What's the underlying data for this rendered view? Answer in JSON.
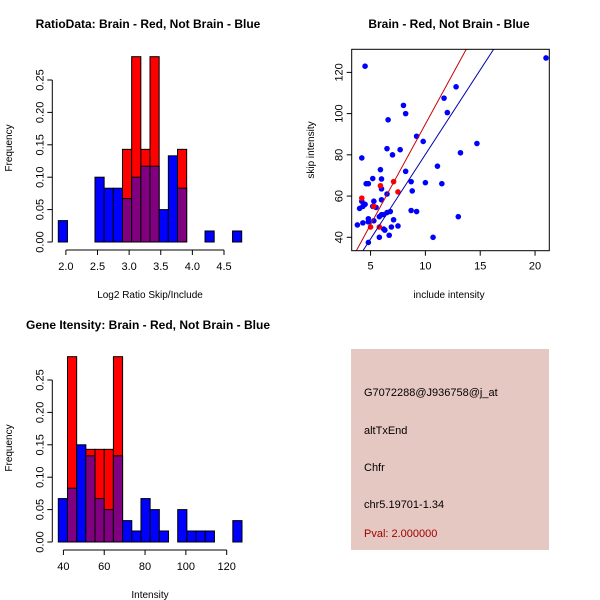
{
  "colors": {
    "red": "#ff0000",
    "blue": "#0000ff",
    "overlap": "#800080",
    "info_bg": "#e6c8c2",
    "pval": "#990000"
  },
  "chart_data": [
    {
      "type": "bar",
      "subtype": "overlaid-histogram",
      "title": "RatioData: Brain - Red, Not Brain - Blue",
      "xlabel": "Log2 Ratio Skip/Include",
      "ylabel": "Frequency",
      "xlim": [
        1.88,
        4.78
      ],
      "ylim": [
        0,
        0.286
      ],
      "xticks": [
        "2.0",
        "2.5",
        "3.0",
        "3.5",
        "4.0",
        "4.5"
      ],
      "yticks": [
        "0.00",
        "0.05",
        "0.10",
        "0.15",
        "0.20",
        "0.25"
      ],
      "bin_start": 1.88,
      "bin_width": 0.145,
      "series": [
        {
          "name": "Brain",
          "color": "red",
          "values": [
            0,
            0,
            0,
            0,
            0,
            0,
            0,
            0.143,
            0.286,
            0.143,
            0.286,
            0,
            0,
            0.143,
            0,
            0,
            0,
            0,
            0,
            0
          ]
        },
        {
          "name": "Not Brain",
          "color": "blue",
          "values": [
            0.033,
            0,
            0,
            0,
            0.1,
            0.083,
            0.083,
            0.067,
            0.1,
            0.117,
            0.117,
            0.05,
            0.133,
            0.083,
            0,
            0,
            0.017,
            0,
            0,
            0.017
          ]
        }
      ]
    },
    {
      "type": "scatter",
      "title": "Brain - Red, Not Brain - Blue",
      "xlabel": "include intensity",
      "ylabel": "skip intensity",
      "xlim": [
        3.28,
        21.3
      ],
      "ylim": [
        33.5,
        131.2
      ],
      "xticks": [
        "5",
        "10",
        "15",
        "20"
      ],
      "yticks": [
        "40",
        "60",
        "80",
        "100",
        "120"
      ],
      "series": [
        {
          "name": "Not Brain",
          "color": "blue",
          "points": [
            [
              4.5,
              123
            ],
            [
              21,
              127
            ],
            [
              12.8,
              113
            ],
            [
              11.7,
              107.5
            ],
            [
              12,
              100.5
            ],
            [
              8,
              104
            ],
            [
              8.2,
              100
            ],
            [
              6.6,
              97
            ],
            [
              9.2,
              89
            ],
            [
              9.8,
              86.5
            ],
            [
              14.7,
              85.5
            ],
            [
              6.5,
              83
            ],
            [
              7.7,
              82.5
            ],
            [
              7,
              80
            ],
            [
              13.2,
              81
            ],
            [
              4.2,
              78.5
            ],
            [
              11.1,
              74.5
            ],
            [
              5.9,
              72.8
            ],
            [
              8.2,
              72
            ],
            [
              5.2,
              68.5
            ],
            [
              6,
              68.3
            ],
            [
              4.6,
              66
            ],
            [
              4.8,
              66
            ],
            [
              8.7,
              67
            ],
            [
              10,
              66.5
            ],
            [
              11.5,
              66
            ],
            [
              6,
              63.5
            ],
            [
              8.8,
              62.5
            ],
            [
              6.5,
              61
            ],
            [
              6,
              58.2
            ],
            [
              4.2,
              57.5
            ],
            [
              5.3,
              57.5
            ],
            [
              4.5,
              56
            ],
            [
              4,
              54
            ],
            [
              4.3,
              55
            ],
            [
              5.2,
              55
            ],
            [
              5.5,
              54.5
            ],
            [
              8.7,
              53
            ],
            [
              9.2,
              52.5
            ],
            [
              6.8,
              52.5
            ],
            [
              6.5,
              52
            ],
            [
              6.2,
              51
            ],
            [
              6,
              51
            ],
            [
              5.8,
              50
            ],
            [
              13,
              50
            ],
            [
              4.8,
              49
            ],
            [
              5.3,
              48
            ],
            [
              4.8,
              47.5
            ],
            [
              4.3,
              47
            ],
            [
              3.8,
              46
            ],
            [
              7.1,
              48.5
            ],
            [
              6.2,
              44
            ],
            [
              6.3,
              43.5
            ],
            [
              6.9,
              45
            ],
            [
              7.5,
              45.5
            ],
            [
              5.8,
              40
            ],
            [
              6.7,
              41
            ],
            [
              10.7,
              40
            ],
            [
              4.8,
              37.5
            ]
          ]
        },
        {
          "name": "Brain",
          "color": "red",
          "points": [
            [
              4.2,
              59
            ],
            [
              5.9,
              65
            ],
            [
              7.1,
              67
            ],
            [
              7.5,
              62
            ],
            [
              5,
              45
            ],
            [
              5.8,
              45
            ],
            [
              5.3,
              55
            ]
          ]
        }
      ],
      "fit_lines": [
        {
          "name": "Brain fit",
          "color": "red",
          "slope": 9.75,
          "intercept": -2.6
        },
        {
          "name": "Not Brain fit",
          "color": "blue",
          "slope": 8.2,
          "intercept": -1.8
        }
      ]
    },
    {
      "type": "bar",
      "subtype": "overlaid-histogram",
      "title": "Gene Itensity: Brain - Red, Not Brain - Blue",
      "xlabel": "Intensity",
      "ylabel": "Frequency",
      "xlim": [
        37.5,
        127.5
      ],
      "ylim": [
        0,
        0.286
      ],
      "xticks": [
        "40",
        "60",
        "80",
        "100",
        "120"
      ],
      "yticks": [
        "0.00",
        "0.05",
        "0.10",
        "0.15",
        "0.20",
        "0.25"
      ],
      "bin_start": 37.5,
      "bin_width": 4.5,
      "series": [
        {
          "name": "Brain",
          "color": "red",
          "values": [
            0,
            0.286,
            0,
            0.143,
            0.143,
            0.143,
            0.286,
            0,
            0,
            0,
            0,
            0,
            0,
            0,
            0,
            0,
            0,
            0,
            0,
            0
          ]
        },
        {
          "name": "Not Brain",
          "color": "blue",
          "values": [
            0.067,
            0.083,
            0.15,
            0.133,
            0.067,
            0.05,
            0.133,
            0.033,
            0.017,
            0.067,
            0.05,
            0.017,
            0,
            0.05,
            0.017,
            0.017,
            0.017,
            0,
            0,
            0.033
          ]
        }
      ]
    }
  ],
  "info_panel": {
    "probe": "G7072288@J936758@j_at",
    "event_type": "altTxEnd",
    "gene": "Chfr",
    "location": "chr5.19701-1.34",
    "pval": "Pval: 2.000000"
  }
}
